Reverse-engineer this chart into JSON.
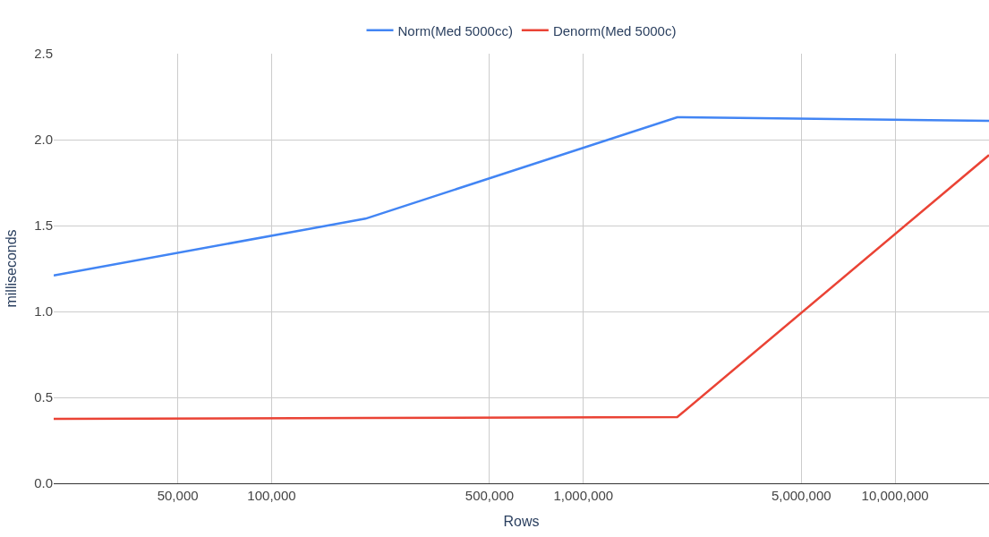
{
  "chart_data": {
    "type": "line",
    "xlabel": "Rows",
    "ylabel": "milliseconds",
    "log": "x",
    "x": [
      20000,
      200000,
      2000000,
      20000000
    ],
    "series": [
      {
        "name": "Norm(Med 5000cc)",
        "color": "#4285f4",
        "values": [
          1.21,
          1.54,
          2.13,
          2.11
        ]
      },
      {
        "name": "Denorm(Med 5000c)",
        "color": "#ea4335",
        "values": [
          0.375,
          0.38,
          0.385,
          1.91
        ]
      }
    ],
    "xlim": [
      20000,
      20000000
    ],
    "xticks": [
      {
        "value": 50000,
        "label": "50,000"
      },
      {
        "value": 100000,
        "label": "100,000"
      },
      {
        "value": 500000,
        "label": "500,000"
      },
      {
        "value": 1000000,
        "label": "1,000,000"
      },
      {
        "value": 5000000,
        "label": "5,000,000"
      },
      {
        "value": 10000000,
        "label": "10,000,000"
      }
    ],
    "ylim": [
      0,
      2.5
    ],
    "yticks": [
      {
        "value": 0,
        "label": "0.0"
      },
      {
        "value": 0.5,
        "label": "0.5"
      },
      {
        "value": 1,
        "label": "1.0"
      },
      {
        "value": 1.5,
        "label": "1.5"
      },
      {
        "value": 2,
        "label": "2.0"
      },
      {
        "value": 2.5,
        "label": "2.5"
      }
    ],
    "grid": true,
    "legend": "top",
    "marker": "none",
    "line_style": "solid"
  }
}
